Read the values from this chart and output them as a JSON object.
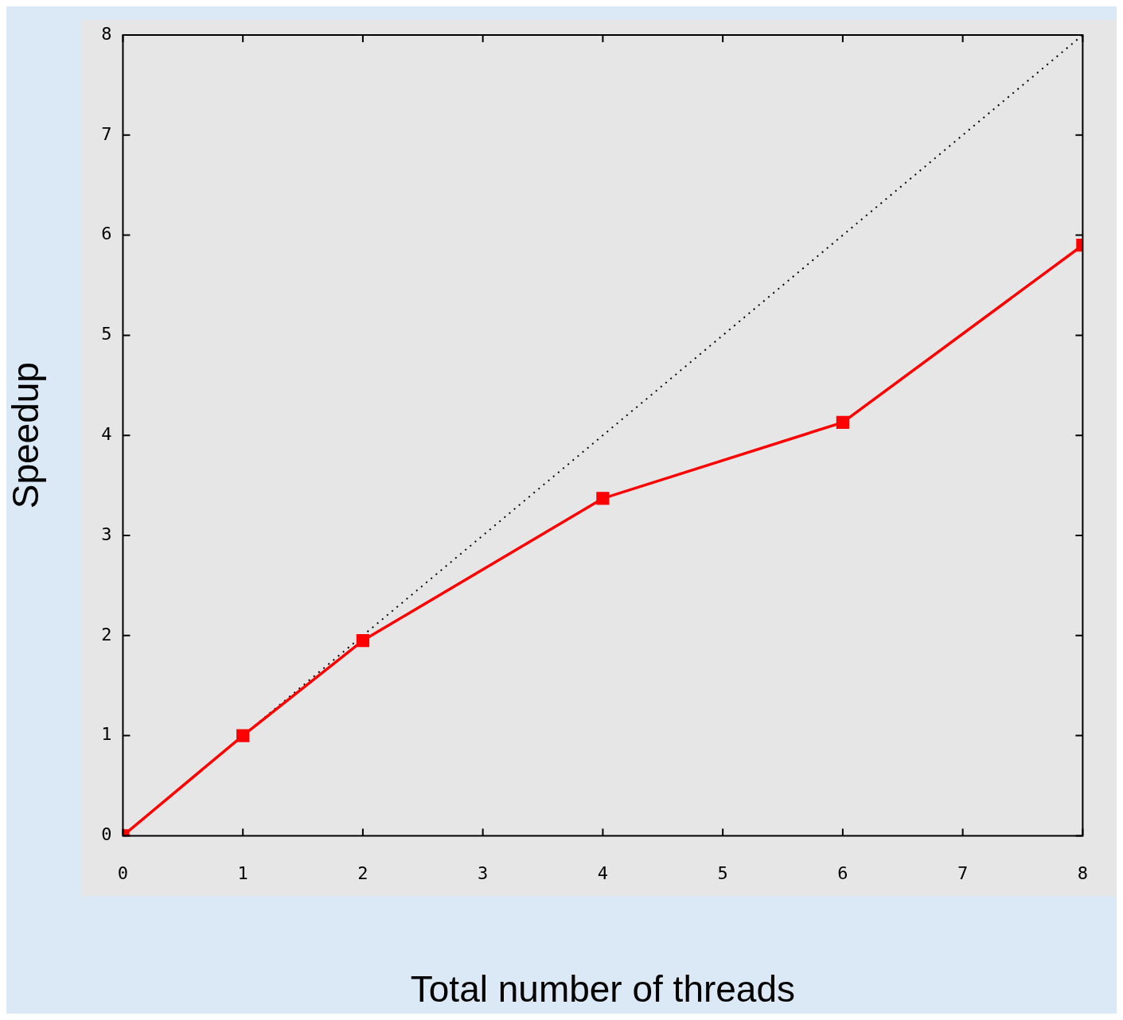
{
  "chart_data": {
    "type": "line",
    "xlabel": "Total number of threads",
    "ylabel": "Speedup",
    "xlim": [
      0,
      8
    ],
    "ylim": [
      0,
      8
    ],
    "xticks": [
      0,
      1,
      2,
      3,
      4,
      5,
      6,
      7,
      8
    ],
    "yticks": [
      0,
      1,
      2,
      3,
      4,
      5,
      6,
      7,
      8
    ],
    "grid": false,
    "legend": false,
    "marker": "square",
    "line_style": "solid",
    "series": [
      {
        "color": "#ff0000",
        "x": [
          0,
          1,
          2,
          4,
          6,
          8
        ],
        "values": [
          0,
          1.0,
          1.95,
          3.37,
          4.13,
          5.9
        ]
      },
      {
        "color": "#000000",
        "x": [
          0,
          8
        ],
        "values": [
          0,
          8
        ],
        "marker": "none",
        "line_style": "dotted"
      }
    ]
  }
}
